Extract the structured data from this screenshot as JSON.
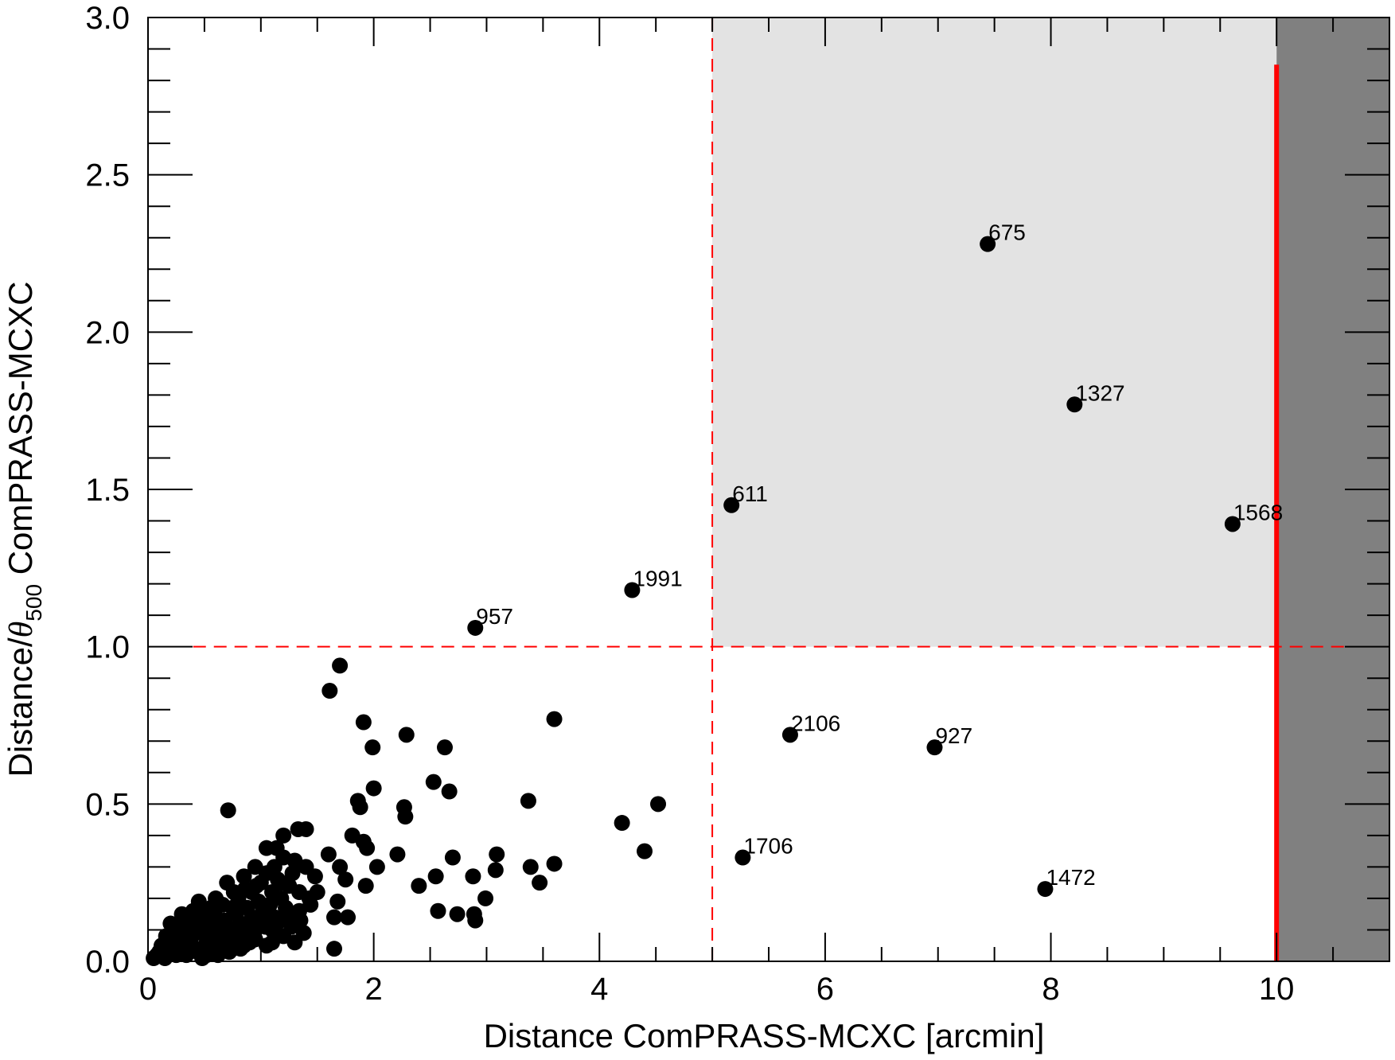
{
  "chart_data": {
    "type": "scatter",
    "xlabel": "Distance ComPRASS-MCXC [arcmin]",
    "ylabel": {
      "main": "Distance/",
      "theta": "θ",
      "sub": "500",
      "rest": " ComPRASS-MCXC"
    },
    "xlim": [
      0,
      11
    ],
    "ylim": [
      0,
      3.0
    ],
    "x_ticks": [
      {
        "value": 0,
        "label": "0"
      },
      {
        "value": 2,
        "label": "2"
      },
      {
        "value": 4,
        "label": "4"
      },
      {
        "value": 6,
        "label": "6"
      },
      {
        "value": 8,
        "label": "8"
      },
      {
        "value": 10,
        "label": "10"
      }
    ],
    "y_ticks": [
      {
        "value": 0.0,
        "label": "0.0"
      },
      {
        "value": 0.5,
        "label": "0.5"
      },
      {
        "value": 1.0,
        "label": "1.0"
      },
      {
        "value": 1.5,
        "label": "1.5"
      },
      {
        "value": 2.0,
        "label": "2.0"
      },
      {
        "value": 2.5,
        "label": "2.5"
      },
      {
        "value": 3.0,
        "label": "3.0"
      }
    ],
    "x_minor_step": 0.5,
    "y_minor_step": 0.1,
    "regions": {
      "light_gray": {
        "x": [
          5,
          10
        ],
        "y": [
          1,
          3
        ],
        "color": "#e3e3e3"
      },
      "dark_gray": {
        "x": [
          10,
          11
        ],
        "y": [
          0,
          3
        ],
        "color": "#808080"
      }
    },
    "reference_lines": [
      {
        "orientation": "vertical",
        "value": 5,
        "style": "dashed",
        "color": "#ff0000",
        "range": [
          0,
          3
        ]
      },
      {
        "orientation": "horizontal",
        "value": 1,
        "style": "dashed",
        "color": "#ff0000",
        "range": [
          0.4,
          10.6
        ]
      },
      {
        "orientation": "vertical",
        "value": 10,
        "style": "solid",
        "color": "#ff0000",
        "range": [
          0,
          2.85
        ]
      }
    ],
    "labeled_points": [
      {
        "x": 7.44,
        "y": 2.28,
        "label": "675"
      },
      {
        "x": 8.21,
        "y": 1.77,
        "label": "1327"
      },
      {
        "x": 5.17,
        "y": 1.45,
        "label": "611"
      },
      {
        "x": 9.61,
        "y": 1.39,
        "label": "1568"
      },
      {
        "x": 4.29,
        "y": 1.18,
        "label": "1991"
      },
      {
        "x": 2.9,
        "y": 1.06,
        "label": "957"
      },
      {
        "x": 5.69,
        "y": 0.72,
        "label": "2106"
      },
      {
        "x": 6.97,
        "y": 0.68,
        "label": "927"
      },
      {
        "x": 5.27,
        "y": 0.33,
        "label": "1706"
      },
      {
        "x": 7.95,
        "y": 0.23,
        "label": "1472"
      }
    ],
    "points": [
      [
        1.7,
        0.94
      ],
      [
        1.61,
        0.86
      ],
      [
        1.91,
        0.76
      ],
      [
        3.6,
        0.77
      ],
      [
        2.29,
        0.72
      ],
      [
        1.99,
        0.68
      ],
      [
        2.63,
        0.68
      ],
      [
        2.53,
        0.57
      ],
      [
        2.67,
        0.54
      ],
      [
        2.0,
        0.55
      ],
      [
        0.71,
        0.48
      ],
      [
        1.86,
        0.51
      ],
      [
        1.88,
        0.49
      ],
      [
        2.27,
        0.49
      ],
      [
        2.28,
        0.46
      ],
      [
        3.37,
        0.51
      ],
      [
        4.52,
        0.5
      ],
      [
        4.2,
        0.44
      ],
      [
        1.4,
        0.42
      ],
      [
        1.81,
        0.4
      ],
      [
        1.91,
        0.38
      ],
      [
        1.94,
        0.36
      ],
      [
        4.4,
        0.35
      ],
      [
        3.09,
        0.34
      ],
      [
        2.21,
        0.34
      ],
      [
        2.7,
        0.33
      ],
      [
        3.6,
        0.31
      ],
      [
        3.39,
        0.3
      ],
      [
        3.08,
        0.29
      ],
      [
        2.03,
        0.3
      ],
      [
        1.7,
        0.3
      ],
      [
        1.6,
        0.34
      ],
      [
        2.88,
        0.27
      ],
      [
        2.55,
        0.27
      ],
      [
        1.48,
        0.27
      ],
      [
        1.93,
        0.24
      ],
      [
        2.4,
        0.24
      ],
      [
        3.47,
        0.25
      ],
      [
        1.75,
        0.26
      ],
      [
        2.99,
        0.2
      ],
      [
        1.68,
        0.19
      ],
      [
        1.43,
        0.2
      ],
      [
        2.57,
        0.16
      ],
      [
        2.74,
        0.15
      ],
      [
        2.89,
        0.15
      ],
      [
        2.9,
        0.13
      ],
      [
        1.65,
        0.14
      ],
      [
        1.77,
        0.14
      ],
      [
        1.2,
        0.4
      ],
      [
        1.33,
        0.42
      ],
      [
        1.14,
        0.36
      ],
      [
        1.05,
        0.36
      ],
      [
        1.2,
        0.33
      ],
      [
        1.3,
        0.32
      ],
      [
        1.5,
        0.22
      ],
      [
        1.35,
        0.13
      ],
      [
        1.38,
        0.09
      ],
      [
        1.27,
        0.11
      ],
      [
        1.65,
        0.04
      ],
      [
        1.1,
        0.06
      ],
      [
        0.9,
        0.06
      ],
      [
        0.7,
        0.25
      ],
      [
        0.85,
        0.27
      ],
      [
        0.95,
        0.3
      ],
      [
        1.0,
        0.25
      ],
      [
        1.1,
        0.22
      ],
      [
        1.05,
        0.28
      ],
      [
        0.92,
        0.22
      ],
      [
        0.8,
        0.2
      ],
      [
        0.75,
        0.17
      ],
      [
        0.6,
        0.2
      ],
      [
        0.55,
        0.15
      ],
      [
        0.5,
        0.14
      ],
      [
        0.45,
        0.12
      ],
      [
        0.4,
        0.1
      ],
      [
        0.35,
        0.09
      ],
      [
        0.3,
        0.07
      ],
      [
        0.25,
        0.06
      ],
      [
        0.2,
        0.05
      ],
      [
        0.15,
        0.04
      ],
      [
        0.1,
        0.03
      ],
      [
        0.12,
        0.05
      ],
      [
        0.18,
        0.03
      ],
      [
        0.22,
        0.08
      ],
      [
        0.28,
        0.1
      ],
      [
        0.33,
        0.05
      ],
      [
        0.38,
        0.07
      ],
      [
        0.42,
        0.04
      ],
      [
        0.48,
        0.09
      ],
      [
        0.52,
        0.06
      ],
      [
        0.58,
        0.11
      ],
      [
        0.62,
        0.08
      ],
      [
        0.68,
        0.13
      ],
      [
        0.72,
        0.1
      ],
      [
        0.78,
        0.15
      ],
      [
        0.82,
        0.12
      ],
      [
        0.88,
        0.17
      ],
      [
        0.92,
        0.14
      ],
      [
        0.98,
        0.19
      ],
      [
        1.02,
        0.16
      ],
      [
        1.08,
        0.18
      ],
      [
        1.12,
        0.14
      ],
      [
        1.18,
        0.2
      ],
      [
        1.22,
        0.17
      ],
      [
        1.25,
        0.24
      ],
      [
        1.28,
        0.28
      ],
      [
        1.15,
        0.26
      ],
      [
        0.96,
        0.24
      ],
      [
        0.86,
        0.23
      ],
      [
        0.76,
        0.22
      ],
      [
        0.66,
        0.18
      ],
      [
        0.56,
        0.17
      ],
      [
        0.46,
        0.15
      ],
      [
        0.36,
        0.13
      ],
      [
        0.26,
        0.11
      ],
      [
        0.16,
        0.08
      ],
      [
        0.08,
        0.02
      ],
      [
        0.05,
        0.01
      ],
      [
        0.14,
        0.02
      ],
      [
        0.24,
        0.03
      ],
      [
        0.34,
        0.02
      ],
      [
        0.44,
        0.03
      ],
      [
        0.54,
        0.04
      ],
      [
        0.64,
        0.05
      ],
      [
        0.74,
        0.06
      ],
      [
        0.84,
        0.08
      ],
      [
        0.94,
        0.09
      ],
      [
        1.04,
        0.11
      ],
      [
        1.14,
        0.12
      ],
      [
        1.24,
        0.14
      ],
      [
        1.34,
        0.16
      ],
      [
        1.44,
        0.18
      ],
      [
        1.34,
        0.22
      ],
      [
        1.4,
        0.3
      ],
      [
        0.72,
        0.03
      ],
      [
        0.82,
        0.04
      ],
      [
        0.62,
        0.02
      ],
      [
        0.52,
        0.02
      ],
      [
        0.3,
        0.15
      ],
      [
        0.45,
        0.19
      ],
      [
        0.6,
        0.14
      ],
      [
        0.7,
        0.11
      ],
      [
        0.8,
        0.09
      ],
      [
        0.9,
        0.11
      ],
      [
        1.0,
        0.13
      ],
      [
        1.1,
        0.1
      ],
      [
        1.2,
        0.08
      ],
      [
        1.3,
        0.06
      ],
      [
        0.2,
        0.12
      ],
      [
        0.4,
        0.16
      ],
      [
        0.55,
        0.1
      ],
      [
        0.65,
        0.07
      ],
      [
        0.75,
        0.04
      ],
      [
        0.85,
        0.05
      ],
      [
        0.95,
        0.07
      ],
      [
        1.05,
        0.05
      ],
      [
        0.35,
        0.03
      ],
      [
        0.25,
        0.02
      ],
      [
        0.15,
        0.01
      ],
      [
        0.48,
        0.01
      ],
      [
        1.12,
        0.3
      ],
      [
        1.18,
        0.25
      ]
    ]
  }
}
